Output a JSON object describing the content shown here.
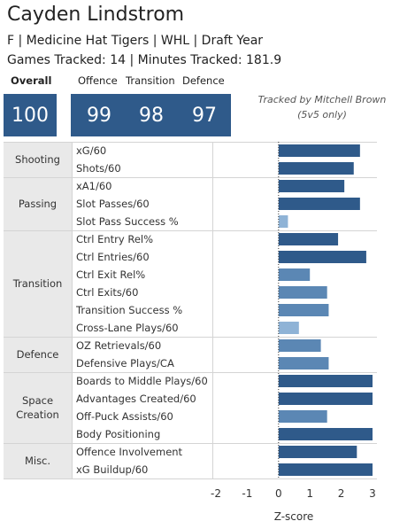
{
  "player": {
    "name": "Cayden Lindstrom",
    "subtitle": "F | Medicine Hat Tigers | WHL | Draft Year",
    "games_minutes": "Games Tracked: 14 | Minutes Tracked: 181.9"
  },
  "scores": {
    "overall_label": "Overall",
    "overall": "100",
    "offence_label": "Offence",
    "offence": "99",
    "transition_label": "Transition",
    "transition": "98",
    "defence_label": "Defence",
    "defence": "97"
  },
  "tracked_by": {
    "line1": "Tracked by Mitchell Brown",
    "line2": "(5v5 only)"
  },
  "chart_data": {
    "type": "bar",
    "orientation": "horizontal",
    "xlabel": "Z-score",
    "xlim": [
      -2,
      3
    ],
    "xticks": [
      "-2",
      "-1",
      "0",
      "1",
      "2",
      "3"
    ],
    "groups": [
      {
        "label": "Shooting",
        "metrics": [
          {
            "label": "xG/60",
            "value": 2.6
          },
          {
            "label": "Shots/60",
            "value": 2.4
          }
        ]
      },
      {
        "label": "Passing",
        "metrics": [
          {
            "label": "xA1/60",
            "value": 2.1
          },
          {
            "label": "Slot Passes/60",
            "value": 2.6
          },
          {
            "label": "Slot Pass Success %",
            "value": 0.3
          }
        ]
      },
      {
        "label": "Transition",
        "metrics": [
          {
            "label": "Ctrl Entry Rel%",
            "value": 1.9
          },
          {
            "label": "Ctrl Entries/60",
            "value": 2.8
          },
          {
            "label": "Ctrl Exit Rel%",
            "value": 1.0
          },
          {
            "label": "Ctrl Exits/60",
            "value": 1.55
          },
          {
            "label": "Transition Success %",
            "value": 1.6
          },
          {
            "label": "Cross-Lane Plays/60",
            "value": 0.65
          }
        ]
      },
      {
        "label": "Defence",
        "metrics": [
          {
            "label": "OZ Retrievals/60",
            "value": 1.35
          },
          {
            "label": "Defensive Plays/CA",
            "value": 1.6
          }
        ]
      },
      {
        "label": "Space Creation",
        "metrics": [
          {
            "label": "Boards to Middle Plays/60",
            "value": 3.0
          },
          {
            "label": "Advantages Created/60",
            "value": 3.0
          },
          {
            "label": "Off-Puck Assists/60",
            "value": 1.55
          },
          {
            "label": "Body Positioning",
            "value": 3.0
          }
        ]
      },
      {
        "label": "Misc.",
        "metrics": [
          {
            "label": "Offence Involvement",
            "value": 2.5
          },
          {
            "label": "xG Buildup/60",
            "value": 3.0
          }
        ]
      }
    ],
    "colors": {
      "high": "#2f5a8a",
      "mid": "#5b87b4",
      "low": "#8fb3d6"
    },
    "grid": false
  }
}
